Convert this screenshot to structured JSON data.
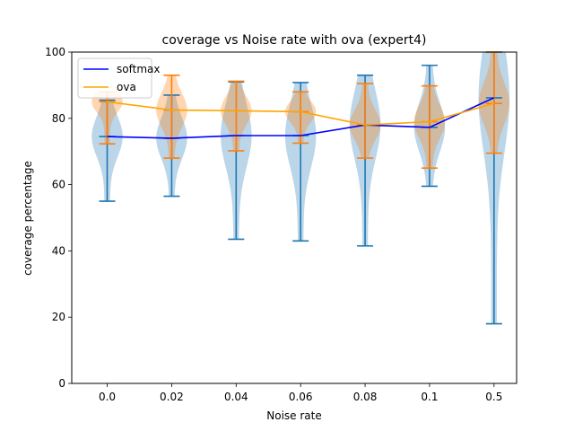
{
  "chart_data": {
    "type": "violin",
    "title": "coverage vs Noise rate with ova (expert4)",
    "xlabel": "Noise rate",
    "ylabel": "coverage percentage",
    "categories": [
      "0.0",
      "0.02",
      "0.04",
      "0.06",
      "0.08",
      "0.1",
      "0.5"
    ],
    "ylim": [
      0,
      100
    ],
    "yticks": [
      0,
      20,
      40,
      60,
      80,
      100
    ],
    "grid": false,
    "legend_position": "top-left",
    "series": [
      {
        "name": "softmax",
        "color": "#0000ff",
        "violin_color": "#1f77b4",
        "mean": [
          74.5,
          74.0,
          74.8,
          74.8,
          78.0,
          77.3,
          86.2
        ],
        "min": [
          55.0,
          56.5,
          43.5,
          43.0,
          41.5,
          59.5,
          18.0
        ],
        "max": [
          85.5,
          87.0,
          91.0,
          90.8,
          93.0,
          96.0,
          100.0
        ]
      },
      {
        "name": "ova",
        "color": "#ffa500",
        "violin_color": "#ff7f0e",
        "mean": [
          85.0,
          82.5,
          82.3,
          82.0,
          78.0,
          79.0,
          84.5
        ],
        "min": [
          72.3,
          68.0,
          70.2,
          72.5,
          68.0,
          65.0,
          69.5
        ],
        "max": [
          88.0,
          93.0,
          91.2,
          88.0,
          90.5,
          89.8,
          100.0
        ]
      }
    ]
  }
}
